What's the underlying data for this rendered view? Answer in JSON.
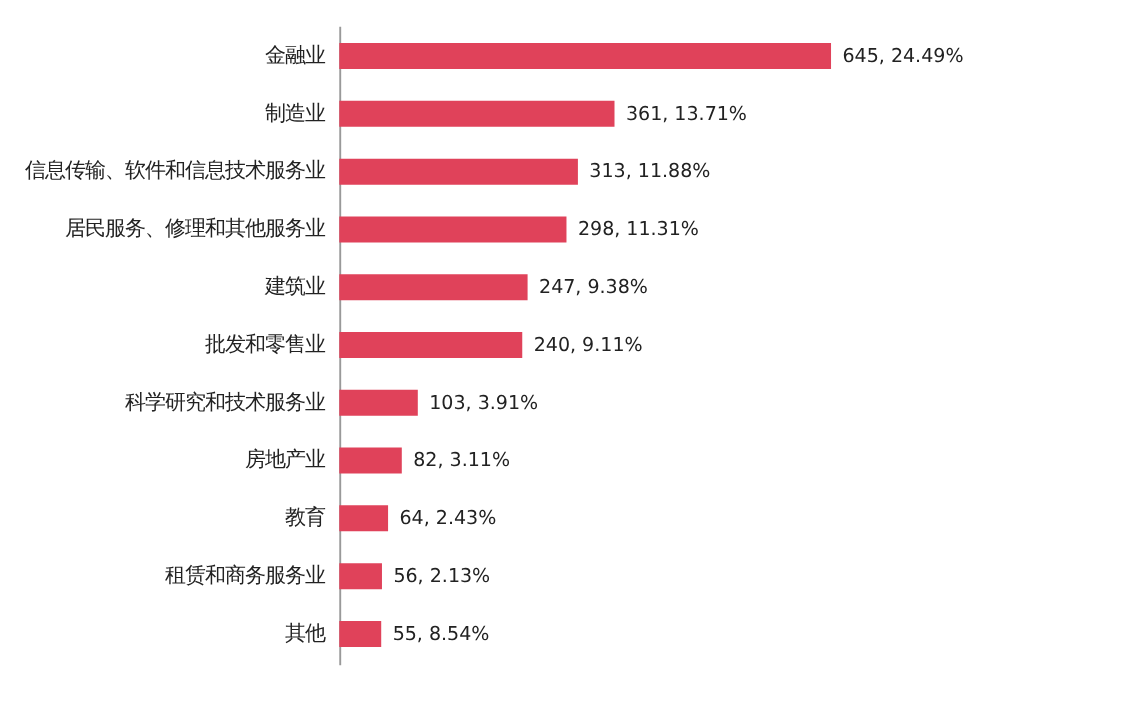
{
  "chart_data": {
    "type": "bar",
    "orientation": "horizontal",
    "categories": [
      "金融业",
      "制造业",
      "信息传输、软件和信息技术服务业",
      "居民服务、修理和其他服务业",
      "建筑业",
      "批发和零售业",
      "科学研究和技术服务业",
      "房地产业",
      "教育",
      "租赁和商务服务业",
      "其他"
    ],
    "values": [
      645,
      361,
      313,
      298,
      247,
      240,
      103,
      82,
      64,
      56,
      55
    ],
    "value_labels": [
      "645, 24.49%",
      "361, 13.71%",
      "313, 11.88%",
      "298, 11.31%",
      "247, 9.38%",
      "240, 9.11%",
      "103, 3.91%",
      "82, 3.11%",
      "64, 2.43%",
      "56, 2.13%",
      "55, 8.54%"
    ],
    "color": "#e0425a"
  }
}
